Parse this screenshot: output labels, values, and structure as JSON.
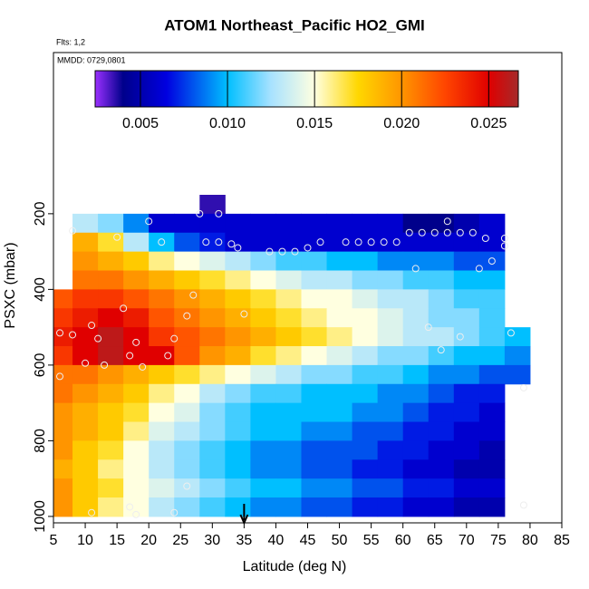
{
  "chart_data": {
    "type": "heatmap",
    "title": "ATOM1 Northeast_Pacific HO2_GMI",
    "annotations": [
      "Flts: 1,2",
      "MMDD: 0729,0801"
    ],
    "xlabel": "Latitude (deg N)",
    "ylabel": "PSXC (mbar)",
    "xlim": [
      5,
      85
    ],
    "xticks": [
      5,
      10,
      15,
      20,
      25,
      30,
      35,
      40,
      45,
      50,
      55,
      60,
      65,
      70,
      75,
      80,
      85
    ],
    "ylim": [
      1017,
      -226
    ],
    "yticks": [
      200,
      400,
      600,
      800,
      1000
    ],
    "marker_x": 35,
    "zlim": [
      0.0024,
      0.0267
    ],
    "zticks": [
      0.005,
      {
        "value": 0.01,
        "label": "0.010"
      },
      0.015,
      {
        "value": 0.02,
        "label": "0.020"
      },
      0.025
    ],
    "colorscale": [
      [
        0.0024,
        "#9b30ff"
      ],
      [
        0.004,
        "#00008b"
      ],
      [
        0.0065,
        "#0000e0"
      ],
      [
        0.01,
        "#00bfff"
      ],
      [
        0.0125,
        "#a8e2ff"
      ],
      [
        0.015,
        "#ffffe0"
      ],
      [
        0.0175,
        "#ffd700"
      ],
      [
        0.02,
        "#ff9500"
      ],
      [
        0.0225,
        "#ff4500"
      ],
      [
        0.025,
        "#e00000"
      ],
      [
        0.0267,
        "#a52a2a"
      ]
    ],
    "x_centers": [
      6,
      10,
      14,
      18,
      22,
      26,
      30,
      34,
      38,
      42,
      46,
      50,
      54,
      58,
      62,
      66,
      70,
      74,
      78
    ],
    "y_centers": [
      175,
      225,
      275,
      325,
      375,
      425,
      475,
      525,
      575,
      625,
      675,
      725,
      775,
      825,
      875,
      925,
      975
    ],
    "z": [
      [
        null,
        null,
        null,
        null,
        null,
        null,
        0.0035,
        null,
        null,
        null,
        null,
        null,
        null,
        null,
        null,
        null,
        null,
        null,
        null
      ],
      [
        null,
        0.013,
        0.012,
        0.009,
        0.006,
        0.006,
        0.006,
        0.006,
        0.006,
        0.006,
        0.006,
        0.006,
        0.006,
        0.006,
        0.004,
        0.004,
        0.005,
        0.006,
        null
      ],
      [
        null,
        0.019,
        0.017,
        0.013,
        0.01,
        0.008,
        0.007,
        0.006,
        0.006,
        0.006,
        0.006,
        0.006,
        0.006,
        0.006,
        0.006,
        0.006,
        0.006,
        0.006,
        null
      ],
      [
        null,
        0.02,
        0.019,
        0.018,
        0.016,
        0.015,
        0.014,
        0.013,
        0.012,
        0.011,
        0.011,
        0.01,
        0.01,
        0.009,
        0.009,
        0.009,
        0.008,
        0.008,
        null
      ],
      [
        null,
        0.021,
        0.021,
        0.02,
        0.019,
        0.018,
        0.017,
        0.016,
        0.015,
        0.014,
        0.013,
        0.013,
        0.012,
        0.012,
        0.011,
        0.011,
        0.01,
        0.01,
        null
      ],
      [
        0.022,
        0.023,
        0.023,
        0.022,
        0.021,
        0.02,
        0.019,
        0.018,
        0.017,
        0.016,
        0.015,
        0.015,
        0.014,
        0.013,
        0.013,
        0.012,
        0.011,
        0.011,
        null
      ],
      [
        0.023,
        0.024,
        0.025,
        0.024,
        0.022,
        0.021,
        0.02,
        0.019,
        0.018,
        0.017,
        0.016,
        0.015,
        0.015,
        0.014,
        0.013,
        0.012,
        0.012,
        0.011,
        null
      ],
      [
        0.024,
        0.025,
        0.026,
        0.025,
        0.023,
        0.022,
        0.021,
        0.02,
        0.019,
        0.018,
        0.017,
        0.016,
        0.015,
        0.014,
        0.013,
        0.013,
        0.012,
        0.011,
        0.01
      ],
      [
        0.023,
        0.025,
        0.026,
        0.025,
        0.025,
        0.022,
        0.02,
        0.019,
        0.017,
        0.016,
        0.015,
        0.014,
        0.013,
        0.012,
        0.012,
        0.011,
        0.01,
        0.01,
        0.009
      ],
      [
        0.021,
        0.021,
        0.02,
        0.019,
        0.018,
        0.017,
        0.016,
        0.015,
        0.014,
        0.013,
        0.012,
        0.012,
        0.011,
        0.011,
        0.01,
        0.009,
        0.009,
        0.008,
        0.008
      ],
      [
        0.021,
        0.02,
        0.019,
        0.018,
        0.016,
        0.015,
        0.013,
        0.012,
        0.011,
        0.011,
        0.01,
        0.01,
        0.01,
        0.009,
        0.009,
        0.008,
        0.007,
        0.007,
        null
      ],
      [
        0.02,
        0.019,
        0.018,
        0.017,
        0.015,
        0.014,
        0.012,
        0.011,
        0.01,
        0.01,
        0.01,
        0.01,
        0.009,
        0.009,
        0.008,
        0.007,
        0.007,
        0.006,
        null
      ],
      [
        0.02,
        0.019,
        0.018,
        0.016,
        0.014,
        0.013,
        0.012,
        0.011,
        0.01,
        0.01,
        0.009,
        0.009,
        0.008,
        0.008,
        0.007,
        0.007,
        0.006,
        0.006,
        null
      ],
      [
        0.02,
        0.018,
        0.017,
        0.015,
        0.013,
        0.012,
        0.011,
        0.01,
        0.009,
        0.009,
        0.008,
        0.008,
        0.008,
        0.007,
        0.007,
        0.006,
        0.006,
        0.005,
        null
      ],
      [
        0.019,
        0.018,
        0.016,
        0.015,
        0.013,
        0.012,
        0.011,
        0.01,
        0.009,
        0.009,
        0.008,
        0.008,
        0.007,
        0.007,
        0.006,
        0.006,
        0.005,
        0.005,
        null
      ],
      [
        0.02,
        0.018,
        0.017,
        0.015,
        0.014,
        0.013,
        0.012,
        0.011,
        0.01,
        0.01,
        0.009,
        0.009,
        0.008,
        0.008,
        0.007,
        0.007,
        0.006,
        0.006,
        null
      ],
      [
        0.02,
        0.018,
        0.016,
        0.015,
        0.013,
        0.012,
        0.011,
        0.01,
        0.009,
        0.009,
        0.008,
        0.008,
        0.007,
        0.007,
        0.006,
        0.006,
        0.005,
        0.005,
        null
      ]
    ],
    "points": {
      "x": [
        11,
        12,
        8,
        10,
        13,
        17,
        18,
        16,
        19,
        23,
        24,
        26,
        27,
        6,
        35,
        64,
        66,
        69,
        77,
        79,
        62,
        72,
        74,
        20,
        28,
        31,
        29,
        31,
        33,
        34,
        39,
        41,
        43,
        45,
        47,
        51,
        53,
        55,
        57,
        59,
        61,
        63,
        65,
        67,
        69,
        71,
        67,
        73,
        76,
        76,
        8,
        15,
        22,
        26,
        11,
        18,
        24,
        17,
        79,
        6
      ],
      "y": [
        495,
        530,
        520,
        595,
        600,
        575,
        540,
        450,
        605,
        575,
        530,
        470,
        415,
        630,
        465,
        500,
        560,
        525,
        515,
        660,
        345,
        345,
        325,
        220,
        200,
        200,
        275,
        275,
        280,
        290,
        300,
        300,
        300,
        290,
        275,
        275,
        275,
        275,
        275,
        275,
        250,
        250,
        250,
        250,
        250,
        250,
        220,
        265,
        265,
        285,
        245,
        262,
        275,
        920,
        990,
        995,
        990,
        975,
        970,
        515
      ]
    }
  }
}
